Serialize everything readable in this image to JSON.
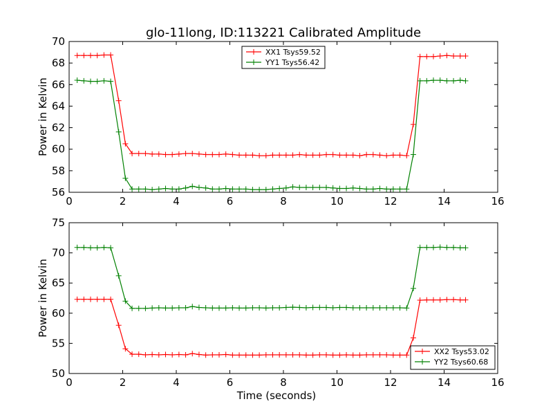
{
  "figure_title": "glo-11long, ID:113221 Calibrated Amplitude",
  "chart_data": [
    {
      "type": "line",
      "title": "glo-11long, ID:113221 Calibrated Amplitude",
      "xlabel": "",
      "ylabel": "Power in Kelvin",
      "xlim": [
        0,
        16
      ],
      "ylim": [
        56,
        70
      ],
      "xticks": [
        "0",
        "2",
        "4",
        "6",
        "8",
        "10",
        "12",
        "14",
        "16"
      ],
      "yticks": [
        "56",
        "58",
        "60",
        "62",
        "64",
        "66",
        "68",
        "70"
      ],
      "grid": false,
      "legend_position": "top-center",
      "x": [
        0.3,
        0.55,
        0.8,
        1.05,
        1.3,
        1.55,
        1.85,
        2.1,
        2.35,
        2.6,
        2.85,
        3.1,
        3.35,
        3.6,
        3.85,
        4.1,
        4.35,
        4.6,
        4.85,
        5.1,
        5.35,
        5.6,
        5.85,
        6.1,
        6.35,
        6.6,
        6.85,
        7.1,
        7.35,
        7.6,
        7.85,
        8.1,
        8.35,
        8.6,
        8.85,
        9.1,
        9.35,
        9.6,
        9.85,
        10.1,
        10.35,
        10.6,
        10.85,
        11.1,
        11.35,
        11.6,
        11.85,
        12.1,
        12.35,
        12.6,
        12.85,
        13.1,
        13.35,
        13.6,
        13.85,
        14.1,
        14.35,
        14.6,
        14.8
      ],
      "series": [
        {
          "name": "XX1 Tsys59.52",
          "color": "#ff0000",
          "values": [
            68.7,
            68.7,
            68.7,
            68.7,
            68.75,
            68.75,
            64.5,
            60.5,
            59.6,
            59.6,
            59.6,
            59.55,
            59.55,
            59.5,
            59.5,
            59.55,
            59.6,
            59.6,
            59.55,
            59.5,
            59.5,
            59.5,
            59.55,
            59.5,
            59.45,
            59.45,
            59.45,
            59.4,
            59.4,
            59.45,
            59.45,
            59.45,
            59.45,
            59.5,
            59.45,
            59.45,
            59.45,
            59.5,
            59.5,
            59.45,
            59.45,
            59.45,
            59.4,
            59.5,
            59.5,
            59.45,
            59.4,
            59.45,
            59.45,
            59.4,
            62.3,
            68.6,
            68.6,
            68.6,
            68.65,
            68.7,
            68.65,
            68.65,
            68.65
          ]
        },
        {
          "name": "YY1 Tsys56.42",
          "color": "#008000",
          "values": [
            66.4,
            66.35,
            66.3,
            66.3,
            66.35,
            66.3,
            61.6,
            57.3,
            56.3,
            56.3,
            56.3,
            56.25,
            56.3,
            56.35,
            56.3,
            56.3,
            56.4,
            56.55,
            56.45,
            56.4,
            56.3,
            56.3,
            56.35,
            56.3,
            56.3,
            56.3,
            56.25,
            56.25,
            56.25,
            56.3,
            56.35,
            56.4,
            56.5,
            56.45,
            56.45,
            56.45,
            56.45,
            56.45,
            56.4,
            56.35,
            56.35,
            56.4,
            56.35,
            56.3,
            56.3,
            56.35,
            56.3,
            56.3,
            56.3,
            56.3,
            59.5,
            66.35,
            66.35,
            66.4,
            66.4,
            66.35,
            66.35,
            66.4,
            66.35
          ]
        }
      ]
    },
    {
      "type": "line",
      "title": "",
      "xlabel": "Time (seconds)",
      "ylabel": "Power in Kelvin",
      "xlim": [
        0,
        16
      ],
      "ylim": [
        50,
        75
      ],
      "xticks": [
        "0",
        "2",
        "4",
        "6",
        "8",
        "10",
        "12",
        "14",
        "16"
      ],
      "yticks": [
        "50",
        "55",
        "60",
        "65",
        "70",
        "75"
      ],
      "grid": false,
      "legend_position": "bottom-right",
      "x": [
        0.3,
        0.55,
        0.8,
        1.05,
        1.3,
        1.55,
        1.85,
        2.1,
        2.35,
        2.6,
        2.85,
        3.1,
        3.35,
        3.6,
        3.85,
        4.1,
        4.35,
        4.6,
        4.85,
        5.1,
        5.35,
        5.6,
        5.85,
        6.1,
        6.35,
        6.6,
        6.85,
        7.1,
        7.35,
        7.6,
        7.85,
        8.1,
        8.35,
        8.6,
        8.85,
        9.1,
        9.35,
        9.6,
        9.85,
        10.1,
        10.35,
        10.6,
        10.85,
        11.1,
        11.35,
        11.6,
        11.85,
        12.1,
        12.35,
        12.6,
        12.85,
        13.1,
        13.35,
        13.6,
        13.85,
        14.1,
        14.35,
        14.6,
        14.8
      ],
      "series": [
        {
          "name": "XX2 Tsys53.02",
          "color": "#ff0000",
          "values": [
            62.3,
            62.3,
            62.3,
            62.3,
            62.3,
            62.3,
            58.0,
            54.1,
            53.2,
            53.2,
            53.1,
            53.15,
            53.1,
            53.15,
            53.1,
            53.15,
            53.1,
            53.3,
            53.15,
            53.05,
            53.1,
            53.1,
            53.15,
            53.05,
            53.05,
            53.05,
            53.05,
            53.05,
            53.1,
            53.1,
            53.1,
            53.1,
            53.1,
            53.1,
            53.05,
            53.05,
            53.1,
            53.1,
            53.05,
            53.05,
            53.1,
            53.05,
            53.05,
            53.1,
            53.1,
            53.1,
            53.1,
            53.05,
            53.05,
            53.05,
            55.9,
            62.15,
            62.2,
            62.2,
            62.2,
            62.25,
            62.25,
            62.2,
            62.2
          ]
        },
        {
          "name": "YY2 Tsys60.68",
          "color": "#008000",
          "values": [
            70.9,
            70.9,
            70.85,
            70.85,
            70.9,
            70.85,
            66.2,
            62.0,
            60.8,
            60.8,
            60.8,
            60.85,
            60.9,
            60.85,
            60.85,
            60.9,
            60.9,
            61.1,
            60.95,
            60.9,
            60.85,
            60.85,
            60.85,
            60.9,
            60.85,
            60.85,
            60.9,
            60.9,
            60.85,
            60.9,
            60.9,
            60.95,
            61.0,
            60.95,
            60.9,
            60.95,
            60.95,
            60.95,
            60.9,
            60.95,
            60.95,
            60.9,
            60.9,
            60.9,
            60.9,
            60.9,
            60.9,
            60.9,
            60.9,
            60.85,
            64.1,
            70.9,
            70.9,
            70.9,
            70.95,
            70.9,
            70.9,
            70.85,
            70.85
          ]
        }
      ]
    }
  ]
}
